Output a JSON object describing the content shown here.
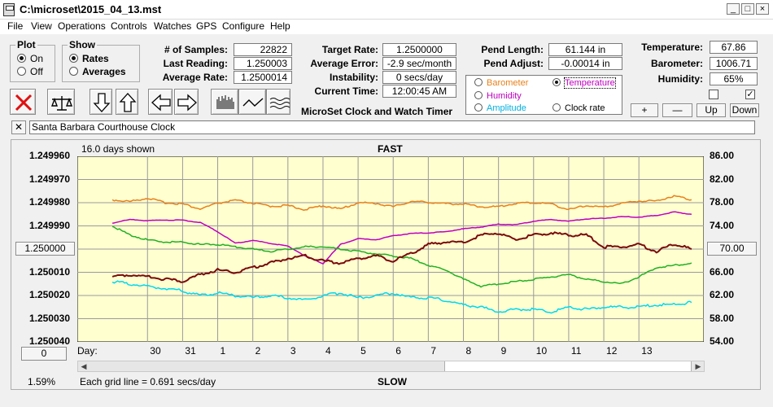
{
  "window": {
    "title": "C:\\microset\\2015_04_13.mst",
    "controls": [
      "_",
      "□",
      "×"
    ]
  },
  "menu": [
    "File",
    "View",
    "Operations",
    "Controls",
    "Watches",
    "GPS",
    "Configure",
    "Help"
  ],
  "plot_group": {
    "title": "Plot",
    "options": [
      "On",
      "Off"
    ],
    "selected": "On"
  },
  "show_group": {
    "title": "Show",
    "options": [
      "Rates",
      "Averages"
    ],
    "selected": "Rates"
  },
  "stats": {
    "samples_label": "# of Samples:",
    "samples": "22822",
    "last_reading_label": "Last Reading:",
    "last_reading": "1.250003",
    "average_rate_label": "Average Rate:",
    "average_rate": "1.2500014",
    "target_rate_label": "Target Rate:",
    "target_rate": "1.2500000",
    "average_error_label": "Average Error:",
    "average_error": "-2.9 sec/month",
    "instability_label": "Instability:",
    "instability": "0 secs/day",
    "current_time_label": "Current Time:",
    "current_time": "12:00:45 AM",
    "pend_length_label": "Pend Length:",
    "pend_length": "61.144 in",
    "pend_adjust_label": "Pend Adjust:",
    "pend_adjust": "-0.00014 in",
    "temperature_label": "Temperature:",
    "temperature": "67.86",
    "barometer_label": "Barometer:",
    "barometer": "1006.71",
    "humidity_label": "Humidity:",
    "humidity": "65%"
  },
  "product_name": "MicroSet Clock and Watch Timer",
  "parameters": [
    {
      "label": "Barometer",
      "color": "#e8801a",
      "selected": false
    },
    {
      "label": "Temperature",
      "color": "#c000c0",
      "selected": true
    },
    {
      "label": "Humidity",
      "color": "#c000c0",
      "selected": false
    },
    {
      "label": "Clock rate",
      "color": "#000000",
      "selected": false
    },
    {
      "label": "Amplitude",
      "color": "#00b0e0",
      "selected": false
    }
  ],
  "scale_buttons": [
    "+",
    "—",
    "Up",
    "Down"
  ],
  "location": "Santa Barbara Courthouse Clock",
  "chart": {
    "days_shown": "16.0 days shown",
    "top_label": "FAST",
    "bottom_label": "SLOW",
    "grid_note": "Each grid line = 0.691 secs/day",
    "percent": "1.59%",
    "left_button": "1.250000",
    "right_button": "70.00",
    "zero_button": "0",
    "day_prefix": "Day:"
  },
  "chart_data": {
    "type": "line",
    "x_axis_label": "Day:",
    "x_ticks": [
      "30",
      "31",
      "1",
      "2",
      "3",
      "4",
      "5",
      "6",
      "7",
      "8",
      "9",
      "10",
      "11",
      "12",
      "13"
    ],
    "y_left_ticks": [
      "1.249960",
      "1.249970",
      "1.249980",
      "1.249990",
      "1.250000",
      "1.250010",
      "1.250020",
      "1.250030",
      "1.250040"
    ],
    "y_left_range": [
      1.24996,
      1.25004
    ],
    "y_left_inverted": true,
    "y_right_ticks": [
      "86.00",
      "82.00",
      "78.00",
      "74.00",
      "70.00",
      "66.00",
      "62.00",
      "58.00",
      "54.00"
    ],
    "y_right_range": [
      54,
      86
    ],
    "grid": true,
    "series": [
      {
        "color": "#e8801a",
        "axis": "right",
        "x": [
          29.0,
          29.5,
          30,
          30.5,
          31,
          31.5,
          1,
          1.5,
          2,
          2.5,
          3,
          3.5,
          4,
          4.5,
          5,
          5.5,
          6,
          6.5,
          7,
          7.5,
          8,
          8.5,
          9,
          9.5,
          10,
          10.5,
          11,
          11.5,
          12,
          12.5,
          13,
          13.5,
          14,
          14.5
        ],
        "y": [
          78.5,
          78.2,
          78.8,
          78.0,
          77.8,
          76.9,
          77.9,
          78.4,
          77.9,
          77.4,
          77.5,
          76.8,
          77.5,
          76.9,
          78.0,
          77.9,
          77.3,
          78.2,
          78.1,
          77.8,
          77.8,
          77.3,
          77.3,
          77.9,
          78.0,
          77.8,
          76.8,
          77.5,
          77.2,
          77.9,
          78.3,
          78.3,
          79.2,
          78.5
        ]
      },
      {
        "color": "#c000c0",
        "axis": "right",
        "x": [
          29.0,
          29.5,
          30,
          30.5,
          31,
          31.5,
          1,
          1.5,
          2,
          2.5,
          3,
          3.5,
          4,
          4.5,
          5,
          5.5,
          6,
          6.5,
          7,
          7.5,
          8,
          8.5,
          9,
          9.5,
          10,
          10.5,
          11,
          11.5,
          12,
          12.5,
          13,
          13.5,
          14,
          14.5
        ],
        "y": [
          74.5,
          75.1,
          74.9,
          75.0,
          75.0,
          74.6,
          73.0,
          71.0,
          71.5,
          71.0,
          70.5,
          68.8,
          67.5,
          70.8,
          71.8,
          71.6,
          72.3,
          72.7,
          72.8,
          73.0,
          73.5,
          73.8,
          74.3,
          74.2,
          74.8,
          75.1,
          74.8,
          75.2,
          75.3,
          75.6,
          75.5,
          75.8,
          76.4,
          76.0
        ]
      },
      {
        "color": "#22b022",
        "axis": "left",
        "x": [
          29.0,
          29.5,
          30,
          30.5,
          31,
          31.5,
          1,
          1.5,
          2,
          2.5,
          3,
          3.5,
          4,
          4.5,
          5,
          5.5,
          6,
          6.5,
          7,
          7.5,
          8,
          8.5,
          9,
          9.5,
          10,
          10.5,
          11,
          11.5,
          12,
          12.5,
          13,
          13.5,
          14,
          14.5
        ],
        "y": [
          1.24999,
          1.249994,
          1.249996,
          1.249997,
          1.249997,
          1.249998,
          1.249998,
          1.249999,
          1.25,
          1.250001,
          1.25,
          1.249999,
          1.249999,
          1.25,
          1.250001,
          1.250002,
          1.250003,
          1.250004,
          1.250007,
          1.250009,
          1.250013,
          1.250016,
          1.250015,
          1.250014,
          1.250013,
          1.250012,
          1.250011,
          1.250013,
          1.250014,
          1.250015,
          1.250012,
          1.250008,
          1.250007,
          1.250006
        ]
      },
      {
        "color": "#00d8f0",
        "axis": "left",
        "x": [
          29.0,
          29.5,
          30,
          30.5,
          31,
          31.5,
          1,
          1.5,
          2,
          2.5,
          3,
          3.5,
          4,
          4.5,
          5,
          5.5,
          6,
          6.5,
          7,
          7.5,
          8,
          8.5,
          9,
          9.5,
          10,
          10.5,
          11,
          11.5,
          12,
          12.5,
          13,
          13.5,
          14,
          14.5
        ],
        "y": [
          1.250014,
          1.250015,
          1.250016,
          1.250017,
          1.250018,
          1.25002,
          1.250019,
          1.25002,
          1.250021,
          1.25002,
          1.250021,
          1.250022,
          1.25002,
          1.250019,
          1.250021,
          1.25002,
          1.250019,
          1.250021,
          1.250021,
          1.250022,
          1.250024,
          1.250025,
          1.250027,
          1.250026,
          1.250026,
          1.250027,
          1.250025,
          1.250026,
          1.250025,
          1.250025,
          1.250025,
          1.250024,
          1.250024,
          1.250023
        ]
      },
      {
        "color": "#7a0a0a",
        "axis": "left",
        "x": [
          29.0,
          29.5,
          30,
          30.5,
          31,
          31.5,
          1,
          1.5,
          2,
          2.5,
          3,
          3.5,
          4,
          4.5,
          5,
          5.5,
          6,
          6.5,
          7,
          7.5,
          8,
          8.5,
          9,
          9.5,
          10,
          10.5,
          11,
          11.5,
          12,
          12.5,
          13,
          13.5,
          14,
          14.5
        ],
        "y": [
          1.250012,
          1.250011,
          1.250012,
          1.250013,
          1.250014,
          1.250011,
          1.250009,
          1.25001,
          1.250008,
          1.250006,
          1.250004,
          1.250003,
          1.250005,
          1.250006,
          1.250004,
          1.250003,
          1.250005,
          1.250002,
          1.249998,
          1.249997,
          1.249997,
          1.249994,
          1.249993,
          1.249996,
          1.249994,
          1.249993,
          1.249994,
          1.249994,
          1.249999,
          1.249999,
          1.249998,
          1.250001,
          1.249998,
          1.25
        ]
      }
    ]
  }
}
